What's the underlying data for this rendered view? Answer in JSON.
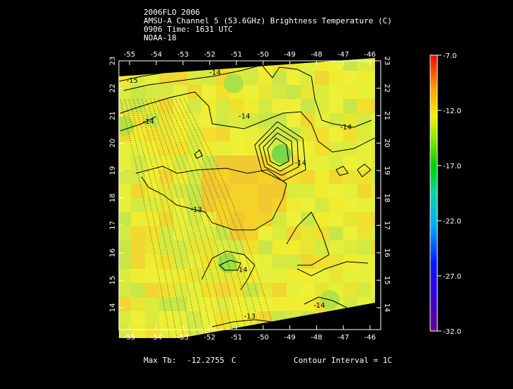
{
  "header": {
    "line1": "2006FLO 2006",
    "line2": "AMSU-A Channel 5 (53.6GHz) Brightness Temperature (C)",
    "line3": "0906 Time: 1631 UTC",
    "line4": "NOAA-18"
  },
  "footer": {
    "max_label": "Max Tb:",
    "max_value": "-12.2755",
    "max_unit": "C",
    "contour_interval": "Contour Interval = 1C"
  },
  "colors": {
    "background": "#000000",
    "frame": "#ffffff",
    "contour": "#000000",
    "field_base": "#e6f03a"
  },
  "chart_data": {
    "type": "heatmap",
    "title": "AMSU-A Channel 5 (53.6GHz) Brightness Temperature (C)",
    "x_ticks": [
      -55,
      -54,
      -53,
      -52,
      -51,
      -50,
      -49,
      -48,
      -47,
      -46
    ],
    "y_ticks": [
      14,
      15,
      16,
      17,
      18,
      19,
      20,
      21,
      22,
      23
    ],
    "xlim": [
      -55.4,
      -45.6
    ],
    "ylim": [
      13.2,
      23.0
    ],
    "colorbar": {
      "ticks": [
        -7.0,
        -12.0,
        -17.0,
        -22.0,
        -27.0,
        -32.0
      ],
      "tick_labels": [
        "-7.0",
        "-12.0",
        "-17.0",
        "-22.0",
        "-27.0",
        "-32.0"
      ],
      "range": [
        -32.0,
        -7.0
      ]
    },
    "contour_interval": 1,
    "contour_labels": [
      {
        "text": "-14",
        "lon": -51.8,
        "lat": 22.5
      },
      {
        "text": "-15",
        "lon": -54.9,
        "lat": 22.2
      },
      {
        "text": "-14",
        "lon": -54.3,
        "lat": 20.7
      },
      {
        "text": "-14",
        "lon": -50.7,
        "lat": 20.9
      },
      {
        "text": "-14",
        "lon": -46.9,
        "lat": 20.5
      },
      {
        "text": "-14",
        "lon": -48.6,
        "lat": 19.2
      },
      {
        "text": "-13",
        "lon": -52.5,
        "lat": 17.5
      },
      {
        "text": "-14",
        "lon": -50.8,
        "lat": 15.3
      },
      {
        "text": "-14",
        "lon": -47.9,
        "lat": 14.0
      },
      {
        "text": "-13",
        "lon": -50.5,
        "lat": 13.6
      }
    ],
    "extrema": [
      {
        "kind": "min",
        "value": -17,
        "lon": -49.6,
        "lat": 19.5
      },
      {
        "kind": "max",
        "value": -12.2755,
        "lon": -51.2,
        "lat": 18.1
      }
    ]
  }
}
